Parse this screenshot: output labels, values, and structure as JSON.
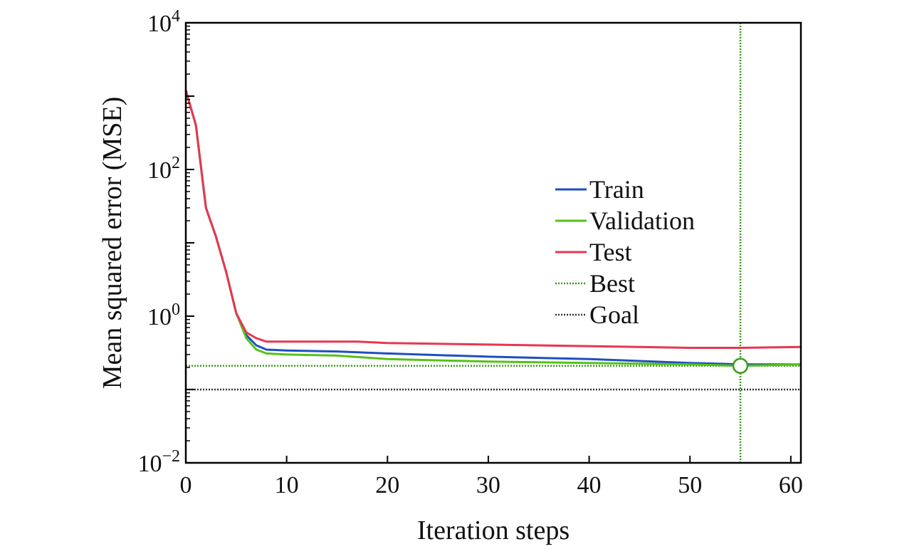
{
  "chart_data": {
    "type": "line",
    "title": "",
    "xlabel": "Iteration steps",
    "ylabel": "Mean squared error (MSE)",
    "xlim": [
      0,
      61
    ],
    "ylim": [
      0.01,
      10000
    ],
    "yscale": "log",
    "xticks": [
      {
        "value": 0,
        "label": "0"
      },
      {
        "value": 10,
        "label": "10"
      },
      {
        "value": 20,
        "label": "20"
      },
      {
        "value": 30,
        "label": "30"
      },
      {
        "value": 40,
        "label": "40"
      },
      {
        "value": 50,
        "label": "50"
      },
      {
        "value": 60,
        "label": "60"
      }
    ],
    "yticks": [
      {
        "value": 0.01,
        "base": "10",
        "exp": "−2"
      },
      {
        "value": 1,
        "base": "10",
        "exp": "0"
      },
      {
        "value": 100,
        "base": "10",
        "exp": "2"
      },
      {
        "value": 10000,
        "base": "10",
        "exp": "4"
      }
    ],
    "series": [
      {
        "name": "Train",
        "color": "#1f4fbf",
        "style": "solid",
        "x": [
          0,
          1,
          2,
          3,
          4,
          5,
          6,
          7,
          8,
          10,
          15,
          20,
          30,
          40,
          50,
          55,
          61
        ],
        "y": [
          1200,
          400,
          30,
          12,
          4,
          1.1,
          0.55,
          0.4,
          0.35,
          0.34,
          0.33,
          0.31,
          0.28,
          0.26,
          0.23,
          0.22,
          0.22
        ]
      },
      {
        "name": "Validation",
        "color": "#55c21a",
        "style": "solid",
        "x": [
          0,
          1,
          2,
          3,
          4,
          5,
          6,
          7,
          8,
          10,
          15,
          20,
          30,
          40,
          50,
          55,
          61
        ],
        "y": [
          1200,
          400,
          30,
          12,
          4,
          1.1,
          0.5,
          0.35,
          0.31,
          0.3,
          0.29,
          0.26,
          0.24,
          0.23,
          0.22,
          0.21,
          0.22
        ]
      },
      {
        "name": "Test",
        "color": "#e8364f",
        "style": "solid",
        "x": [
          0,
          1,
          2,
          3,
          4,
          5,
          6,
          7,
          8,
          10,
          15,
          17,
          20,
          30,
          40,
          50,
          55,
          61
        ],
        "y": [
          1200,
          400,
          30,
          12,
          4,
          1.1,
          0.6,
          0.5,
          0.45,
          0.45,
          0.45,
          0.45,
          0.43,
          0.41,
          0.39,
          0.37,
          0.37,
          0.38
        ]
      }
    ],
    "best": {
      "name": "Best",
      "color": "#3a9a1a",
      "x": 55,
      "y": 0.21
    },
    "goal": {
      "name": "Goal",
      "color": "#333333",
      "y": 0.1
    },
    "legend": {
      "position": "center-right",
      "entries": [
        {
          "label": "Train",
          "color": "#1f4fbf",
          "style": "solid"
        },
        {
          "label": "Validation",
          "color": "#55c21a",
          "style": "solid"
        },
        {
          "label": "Test",
          "color": "#e8364f",
          "style": "solid"
        },
        {
          "label": "Best",
          "color": "#3a9a1a",
          "style": "dotted"
        },
        {
          "label": "Goal",
          "color": "#333333",
          "style": "dotted"
        }
      ]
    }
  }
}
